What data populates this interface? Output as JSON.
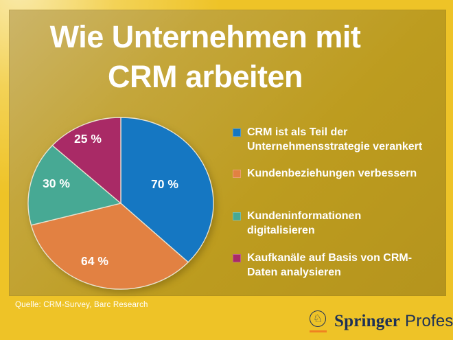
{
  "title": {
    "line1": "Wie Unternehmen mit",
    "line2": "CRM arbeiten"
  },
  "source": "Quelle: CRM-Survey, Barc Research",
  "brand": {
    "name": "Springer",
    "suffix": "Professional",
    "knight_icon": "chess-knight",
    "navy": "#1e3156",
    "underline_orange": "#ef8220"
  },
  "colors": {
    "background_gold": "#eec327",
    "panel_gold": "#bd9c1f",
    "text_white": "#ffffff",
    "slice_stroke": "#e9e3d0"
  },
  "chart_data": {
    "type": "pie",
    "title": "Wie Unternehmen mit CRM arbeiten",
    "unit": "%",
    "start_angle_deg": 0,
    "direction": "clockwise",
    "legend_position": "right",
    "slices": [
      {
        "value": 70,
        "display": "70 %",
        "color": "#1577c2",
        "label": "CRM ist als Teil der Unternehmensstrategie verankert",
        "legend_lines": [
          "CRM ist als Teil der",
          "Unternehmensstrategie verankert"
        ]
      },
      {
        "value": 64,
        "display": "64 %",
        "color": "#e28142",
        "label": "Kundenbeziehungen verbessern",
        "legend_lines": [
          "Kundenbeziehungen verbessern"
        ]
      },
      {
        "value": 30,
        "display": "30 %",
        "color": "#47a994",
        "label": "Kundeninformationen digitalisieren",
        "legend_lines": [
          "Kundeninformationen",
          "digitalisieren"
        ]
      },
      {
        "value": 25,
        "display": "25 %",
        "color": "#a92a66",
        "label": "Kaufkanäle auf Basis von CRM-Daten analysieren",
        "legend_lines": [
          "Kaufkanäle auf Basis von CRM-",
          "Daten analysieren"
        ]
      }
    ]
  }
}
